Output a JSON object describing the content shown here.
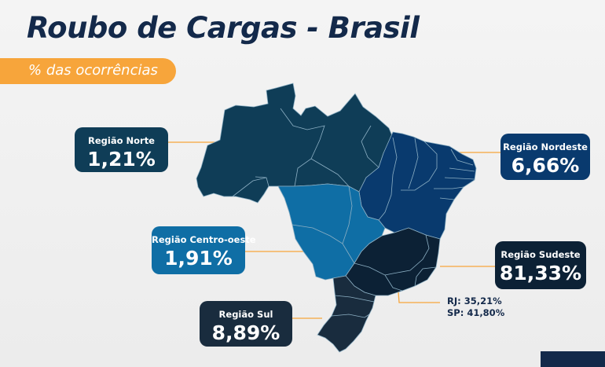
{
  "title": "Roubo de Cargas - Brasil",
  "subtitle": "% das ocorrências",
  "colors": {
    "title": "#13294a",
    "subtitle_bg": "#f7a53b",
    "norte": "#0f3d57",
    "nordeste": "#093a6e",
    "centro_oeste": "#0f6ea5",
    "sudeste": "#0c2135",
    "sul": "#192c3e",
    "connector": "#f7a53b"
  },
  "regions": {
    "norte": {
      "label": "Região Norte",
      "value": "1,21%"
    },
    "nordeste": {
      "label": "Região Nordeste",
      "value": "6,66%"
    },
    "centro_oeste": {
      "label": "Região Centro-oeste",
      "value": "1,91%"
    },
    "sudeste": {
      "label": "Região Sudeste",
      "value": "81,33%"
    },
    "sul": {
      "label": "Região Sul",
      "value": "8,89%"
    }
  },
  "breakdown": {
    "rj": "RJ: 35,21%",
    "sp": "SP: 41,80%"
  }
}
